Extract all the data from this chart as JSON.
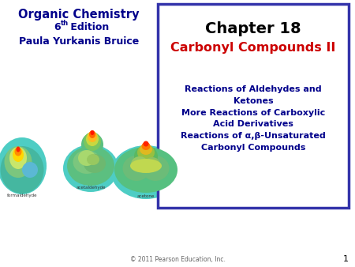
{
  "bg_color": "#ffffff",
  "left_title": "Organic Chemistry",
  "left_subtitle_edition": "6",
  "left_subtitle_super": "th",
  "left_subtitle_edition2": " Edition",
  "left_subtitle3": "Paula Yurkanis Bruice",
  "left_title_color": "#00008B",
  "chapter_title": "Chapter 18",
  "chapter_title_color": "#000000",
  "subtitle_red": "Carbonyl Compounds II",
  "subtitle_red_color": "#CC0000",
  "body_lines": [
    "Reactions of Aldehydes and",
    "Ketones",
    "More Reactions of Carboxylic",
    "Acid Derivatives",
    "Reactions of α,β-Unsaturated",
    "Carbonyl Compounds"
  ],
  "body_color": "#00008B",
  "box_border_color": "#3333AA",
  "footer_text": "© 2011 Pearson Education, Inc.",
  "footer_color": "#666666",
  "page_num": "1",
  "page_num_color": "#000000",
  "label_formaldehyde": "formaldehyde",
  "label_acetaldehyde": "acetaldehyde",
  "label_acetone": "acetone"
}
